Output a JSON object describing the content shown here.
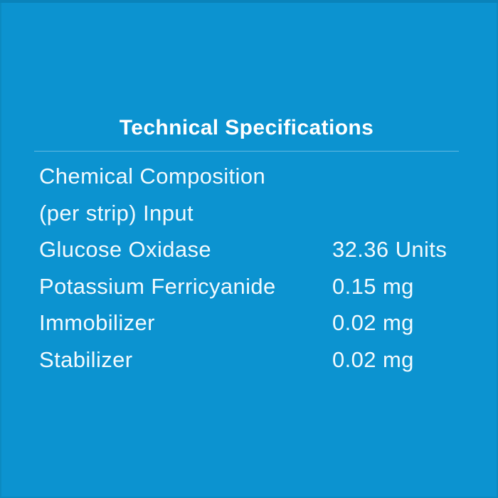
{
  "colors": {
    "background": "#0C93D0",
    "edge": "#0A83BA",
    "divider": "#62B9E1",
    "title_text": "#FFFFFF",
    "body_text": "#F2FAFE"
  },
  "spec_panel": {
    "title": "Technical Specifications",
    "rows": [
      {
        "label": "Chemical Composition\n(per strip) Input",
        "value": ""
      },
      {
        "label": "Glucose Oxidase",
        "value": "32.36 Units"
      },
      {
        "label": "Potassium Ferricyanide",
        "value": "0.15 mg"
      },
      {
        "label": "Immobilizer",
        "value": "0.02 mg"
      },
      {
        "label": "Stabilizer",
        "value": "0.02 mg"
      }
    ]
  }
}
